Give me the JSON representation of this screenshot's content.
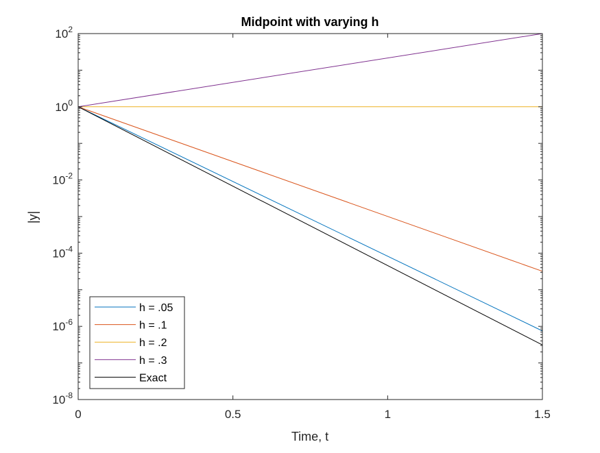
{
  "chart_data": {
    "type": "line",
    "title": "Midpoint with varying h",
    "xlabel": "Time, t",
    "ylabel": "|y|",
    "xlim": [
      0,
      1.5
    ],
    "ylim": [
      1e-08,
      100
    ],
    "yscale": "log",
    "grid": false,
    "legend_position": "bottom-left",
    "x_ticks": [
      {
        "value": 0,
        "label": "0"
      },
      {
        "value": 0.5,
        "label": "0.5"
      },
      {
        "value": 1,
        "label": "1"
      },
      {
        "value": 1.5,
        "label": "1.5"
      }
    ],
    "y_ticks": [
      {
        "value": 1e-08,
        "base": "10",
        "exp": "-8"
      },
      {
        "value": 1e-06,
        "base": "10",
        "exp": "-6"
      },
      {
        "value": 0.0001,
        "base": "10",
        "exp": "-4"
      },
      {
        "value": 0.01,
        "base": "10",
        "exp": "-2"
      },
      {
        "value": 1,
        "base": "10",
        "exp": "0"
      },
      {
        "value": 100,
        "base": "10",
        "exp": "2"
      }
    ],
    "series": [
      {
        "name": "h = .05",
        "color": "#0072BD",
        "x": [
          0,
          1.5
        ],
        "y": [
          1,
          7.5e-07
        ]
      },
      {
        "name": "h = .1",
        "color": "#D95319",
        "x": [
          0,
          1.5
        ],
        "y": [
          1,
          3.2e-05
        ]
      },
      {
        "name": "h = .2",
        "color": "#EDB120",
        "x": [
          0,
          1.5
        ],
        "y": [
          1,
          1
        ]
      },
      {
        "name": "h = .3",
        "color": "#7E2F8E",
        "x": [
          0,
          1.5
        ],
        "y": [
          1,
          100
        ]
      },
      {
        "name": "Exact",
        "color": "#000000",
        "x": [
          0,
          1.5
        ],
        "y": [
          1,
          3.1e-07
        ]
      }
    ]
  }
}
